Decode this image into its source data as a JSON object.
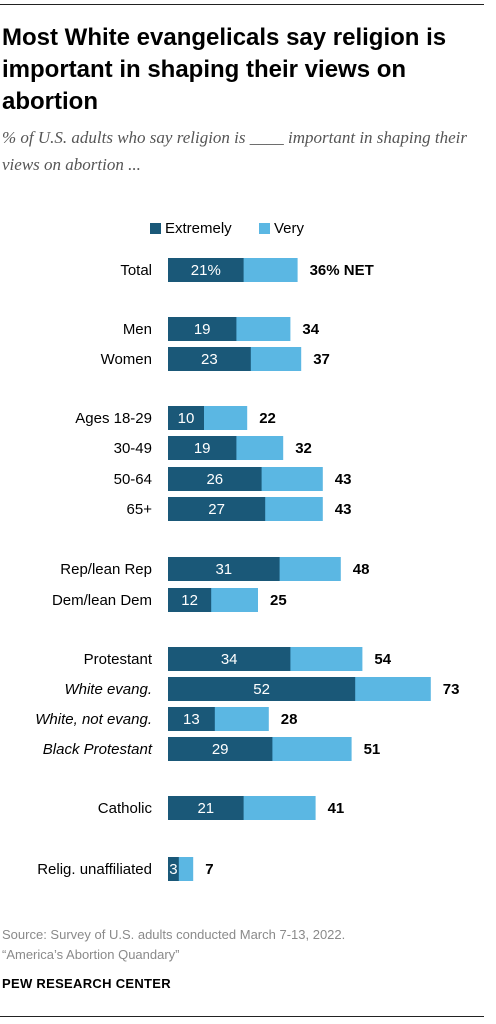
{
  "title": "Most White evangelicals say religion is important in shaping their views on abortion",
  "subtitle": "% of U.S. adults who say religion is ____ important in shaping their views on abortion ...",
  "source_line1": "Source: Survey of U.S. adults conducted March 7-13, 2022.",
  "source_line2": "“America’s Abortion Quandary”",
  "organization": "PEW RESEARCH CENTER",
  "colors": {
    "extremely": "#1a5878",
    "very": "#5bb7e3"
  },
  "chart_data": {
    "type": "bar",
    "stacked": true,
    "orientation": "horizontal",
    "legend": [
      "Extremely",
      "Very"
    ],
    "legend_position": "top",
    "xlim": [
      0,
      100
    ],
    "rows": [
      {
        "label": "Total",
        "italic": false,
        "extremely": 21,
        "net": 36,
        "extremely_label": "21%",
        "net_label": "36% NET",
        "group": 0
      },
      {
        "label": "Men",
        "italic": false,
        "extremely": 19,
        "net": 34,
        "extremely_label": "19",
        "net_label": "34",
        "group": 1
      },
      {
        "label": "Women",
        "italic": false,
        "extremely": 23,
        "net": 37,
        "extremely_label": "23",
        "net_label": "37",
        "group": 1
      },
      {
        "label": "Ages 18-29",
        "italic": false,
        "extremely": 10,
        "net": 22,
        "extremely_label": "10",
        "net_label": "22",
        "group": 2
      },
      {
        "label": "30-49",
        "italic": false,
        "extremely": 19,
        "net": 32,
        "extremely_label": "19",
        "net_label": "32",
        "group": 2
      },
      {
        "label": "50-64",
        "italic": false,
        "extremely": 26,
        "net": 43,
        "extremely_label": "26",
        "net_label": "43",
        "group": 2
      },
      {
        "label": "65+",
        "italic": false,
        "extremely": 27,
        "net": 43,
        "extremely_label": "27",
        "net_label": "43",
        "group": 2
      },
      {
        "label": "Rep/lean Rep",
        "italic": false,
        "extremely": 31,
        "net": 48,
        "extremely_label": "31",
        "net_label": "48",
        "group": 3
      },
      {
        "label": "Dem/lean Dem",
        "italic": false,
        "extremely": 12,
        "net": 25,
        "extremely_label": "12",
        "net_label": "25",
        "group": 3
      },
      {
        "label": "Protestant",
        "italic": false,
        "extremely": 34,
        "net": 54,
        "extremely_label": "34",
        "net_label": "54",
        "group": 4
      },
      {
        "label": "White evang.",
        "italic": true,
        "extremely": 52,
        "net": 73,
        "extremely_label": "52",
        "net_label": "73",
        "group": 4
      },
      {
        "label": "White, not evang.",
        "italic": true,
        "extremely": 13,
        "net": 28,
        "extremely_label": "13",
        "net_label": "28",
        "group": 4
      },
      {
        "label": "Black Protestant",
        "italic": true,
        "extremely": 29,
        "net": 51,
        "extremely_label": "29",
        "net_label": "51",
        "group": 4
      },
      {
        "label": "Catholic",
        "italic": false,
        "extremely": 21,
        "net": 41,
        "extremely_label": "21",
        "net_label": "41",
        "group": 5
      },
      {
        "label": "Relig. unaffiliated",
        "italic": false,
        "extremely": 3,
        "net": 7,
        "extremely_label": "3",
        "net_label": "7",
        "group": 6
      }
    ]
  }
}
